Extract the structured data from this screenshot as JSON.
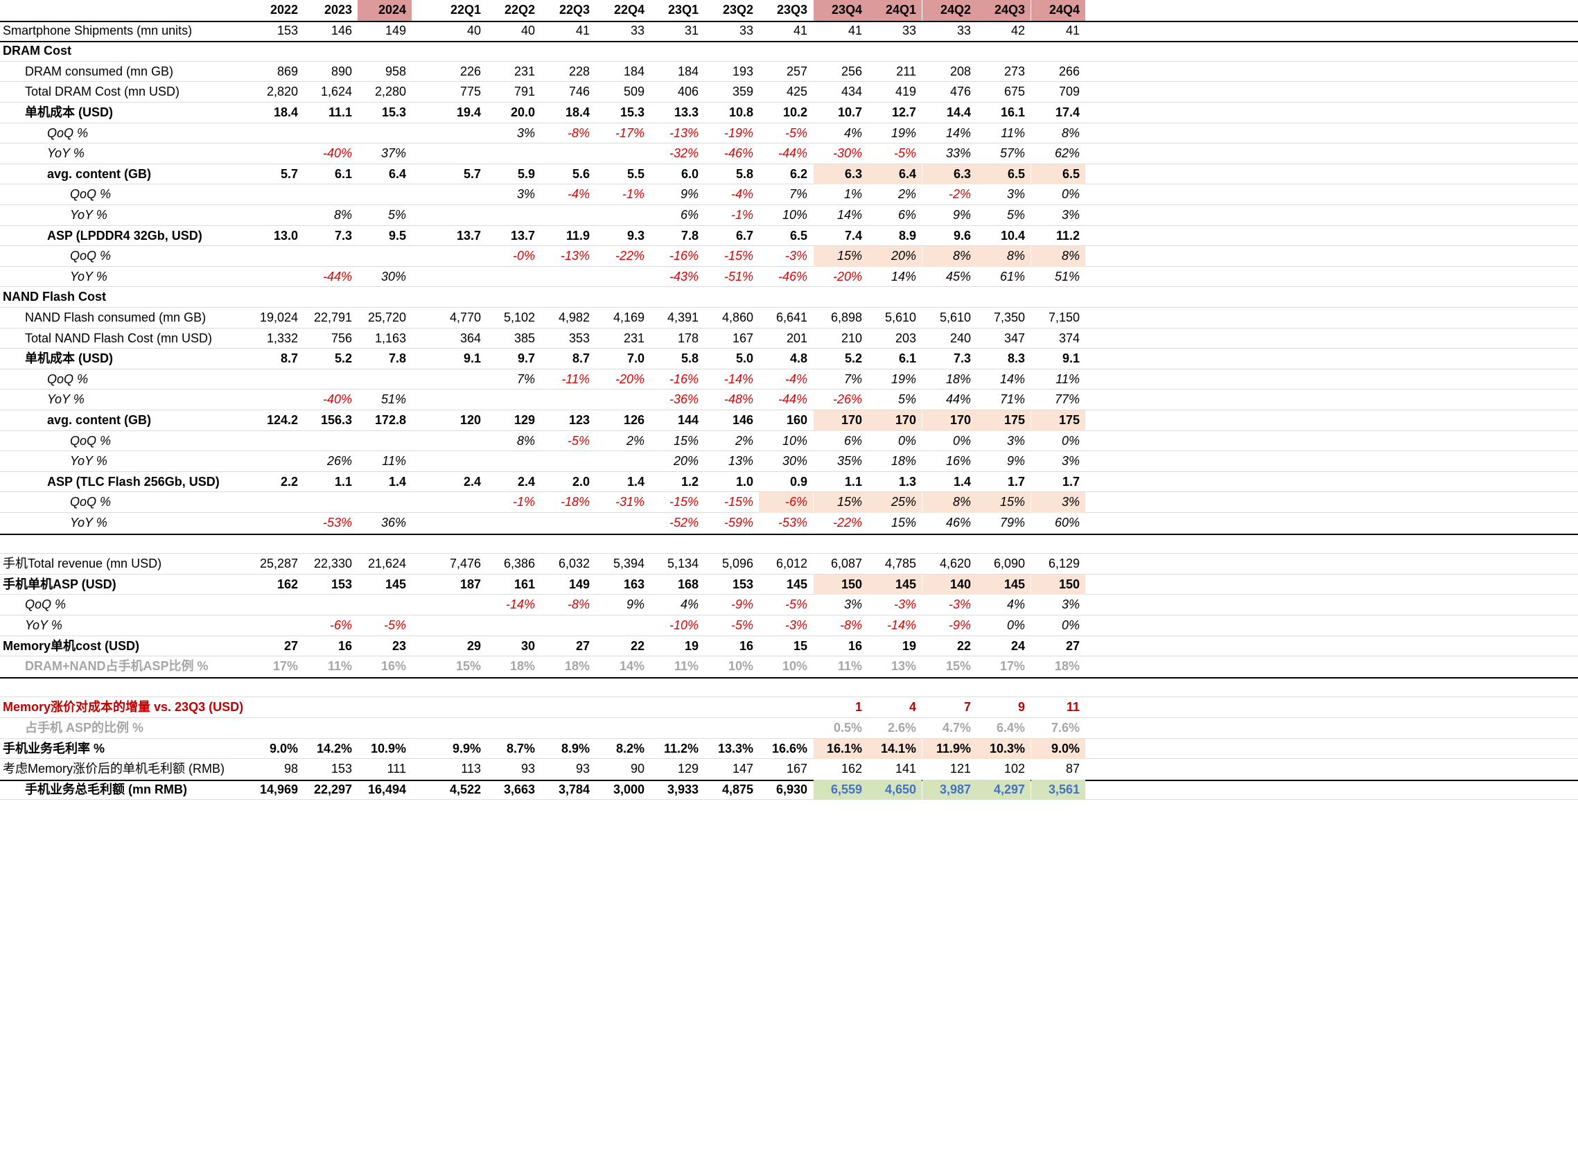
{
  "columns": [
    "2022",
    "2023",
    "2024",
    "22Q1",
    "22Q2",
    "22Q3",
    "22Q4",
    "23Q1",
    "23Q2",
    "23Q3",
    "23Q4",
    "24Q1",
    "24Q2",
    "24Q3",
    "24Q4"
  ],
  "header_highlight": [
    2,
    10,
    11,
    12,
    13,
    14
  ],
  "colors": {
    "rose": "#dc9a9a",
    "peach": "#fbe3d5",
    "green": "#d6e4bc",
    "red": "#e00000",
    "grey": "#a6a6a6",
    "darkred": "#c00000",
    "blue": "#4472c4"
  },
  "rows": [
    {
      "label": "Smartphone Shipments (mn units)",
      "indent": 0,
      "style": "",
      "values": [
        "153",
        "146",
        "149",
        "40",
        "40",
        "41",
        "33",
        "31",
        "33",
        "41",
        "41",
        "33",
        "33",
        "42",
        "41"
      ],
      "rule": true
    },
    {
      "label": "DRAM Cost",
      "indent": 0,
      "style": "b",
      "values": []
    },
    {
      "label": "DRAM consumed (mn GB)",
      "indent": 1,
      "style": "",
      "values": [
        "869",
        "890",
        "958",
        "226",
        "231",
        "228",
        "184",
        "184",
        "193",
        "257",
        "256",
        "211",
        "208",
        "273",
        "266"
      ]
    },
    {
      "label": "Total DRAM Cost (mn USD)",
      "indent": 1,
      "style": "",
      "values": [
        "2,820",
        "1,624",
        "2,280",
        "775",
        "791",
        "746",
        "509",
        "406",
        "359",
        "425",
        "434",
        "419",
        "476",
        "675",
        "709"
      ]
    },
    {
      "label": "单机成本 (USD)",
      "indent": 1,
      "style": "b",
      "values": [
        "18.4",
        "11.1",
        "15.3",
        "19.4",
        "20.0",
        "18.4",
        "15.3",
        "13.3",
        "10.8",
        "10.2",
        "10.7",
        "12.7",
        "14.4",
        "16.1",
        "17.4"
      ]
    },
    {
      "label": "QoQ %",
      "indent": 2,
      "style": "it",
      "values": [
        "",
        "",
        "",
        "",
        "3%",
        "-8%",
        "-17%",
        "-13%",
        "-19%",
        "-5%",
        "4%",
        "19%",
        "14%",
        "11%",
        "8%"
      ]
    },
    {
      "label": "YoY %",
      "indent": 2,
      "style": "it",
      "values": [
        "",
        "-40%",
        "37%",
        "",
        "",
        "",
        "",
        "-32%",
        "-46%",
        "-44%",
        "-30%",
        "-5%",
        "33%",
        "57%",
        "62%"
      ]
    },
    {
      "label": "avg. content (GB)",
      "indent": 2,
      "style": "b",
      "values": [
        "5.7",
        "6.1",
        "6.4",
        "5.7",
        "5.9",
        "5.6",
        "5.5",
        "6.0",
        "5.8",
        "6.2",
        "6.3",
        "6.4",
        "6.3",
        "6.5",
        "6.5"
      ],
      "hl": [
        10,
        11,
        12,
        13,
        14
      ]
    },
    {
      "label": "QoQ %",
      "indent": 3,
      "style": "it",
      "values": [
        "",
        "",
        "",
        "",
        "3%",
        "-4%",
        "-1%",
        "9%",
        "-4%",
        "7%",
        "1%",
        "2%",
        "-2%",
        "3%",
        "0%"
      ]
    },
    {
      "label": "YoY %",
      "indent": 3,
      "style": "it",
      "values": [
        "",
        "8%",
        "5%",
        "",
        "",
        "",
        "",
        "6%",
        "-1%",
        "10%",
        "14%",
        "6%",
        "9%",
        "5%",
        "3%"
      ]
    },
    {
      "label": "ASP (LPDDR4 32Gb, USD)",
      "indent": 2,
      "style": "b",
      "values": [
        "13.0",
        "7.3",
        "9.5",
        "13.7",
        "13.7",
        "11.9",
        "9.3",
        "7.8",
        "6.7",
        "6.5",
        "7.4",
        "8.9",
        "9.6",
        "10.4",
        "11.2"
      ]
    },
    {
      "label": "QoQ %",
      "indent": 3,
      "style": "it",
      "values": [
        "",
        "",
        "",
        "",
        "-0%",
        "-13%",
        "-22%",
        "-16%",
        "-15%",
        "-3%",
        "15%",
        "20%",
        "8%",
        "8%",
        "8%"
      ],
      "hl": [
        10,
        11,
        12,
        13,
        14
      ]
    },
    {
      "label": "YoY %",
      "indent": 3,
      "style": "it",
      "values": [
        "",
        "-44%",
        "30%",
        "",
        "",
        "",
        "",
        "-43%",
        "-51%",
        "-46%",
        "-20%",
        "14%",
        "45%",
        "61%",
        "51%"
      ]
    },
    {
      "label": "NAND Flash Cost",
      "indent": 0,
      "style": "b",
      "values": []
    },
    {
      "label": "NAND Flash consumed (mn GB)",
      "indent": 1,
      "style": "",
      "values": [
        "19,024",
        "22,791",
        "25,720",
        "4,770",
        "5,102",
        "4,982",
        "4,169",
        "4,391",
        "4,860",
        "6,641",
        "6,898",
        "5,610",
        "5,610",
        "7,350",
        "7,150"
      ]
    },
    {
      "label": "Total NAND Flash Cost (mn USD)",
      "indent": 1,
      "style": "",
      "values": [
        "1,332",
        "756",
        "1,163",
        "364",
        "385",
        "353",
        "231",
        "178",
        "167",
        "201",
        "210",
        "203",
        "240",
        "347",
        "374"
      ]
    },
    {
      "label": "单机成本 (USD)",
      "indent": 1,
      "style": "b",
      "values": [
        "8.7",
        "5.2",
        "7.8",
        "9.1",
        "9.7",
        "8.7",
        "7.0",
        "5.8",
        "5.0",
        "4.8",
        "5.2",
        "6.1",
        "7.3",
        "8.3",
        "9.1"
      ]
    },
    {
      "label": "QoQ %",
      "indent": 2,
      "style": "it",
      "values": [
        "",
        "",
        "",
        "",
        "7%",
        "-11%",
        "-20%",
        "-16%",
        "-14%",
        "-4%",
        "7%",
        "19%",
        "18%",
        "14%",
        "11%"
      ]
    },
    {
      "label": "YoY %",
      "indent": 2,
      "style": "it",
      "values": [
        "",
        "-40%",
        "51%",
        "",
        "",
        "",
        "",
        "-36%",
        "-48%",
        "-44%",
        "-26%",
        "5%",
        "44%",
        "71%",
        "77%"
      ]
    },
    {
      "label": "avg. content (GB)",
      "indent": 2,
      "style": "b",
      "values": [
        "124.2",
        "156.3",
        "172.8",
        "120",
        "129",
        "123",
        "126",
        "144",
        "146",
        "160",
        "170",
        "170",
        "170",
        "175",
        "175"
      ],
      "hl": [
        10,
        11,
        12,
        13,
        14
      ]
    },
    {
      "label": "QoQ %",
      "indent": 3,
      "style": "it",
      "values": [
        "",
        "",
        "",
        "",
        "8%",
        "-5%",
        "2%",
        "15%",
        "2%",
        "10%",
        "6%",
        "0%",
        "0%",
        "3%",
        "0%"
      ]
    },
    {
      "label": "YoY %",
      "indent": 3,
      "style": "it",
      "values": [
        "",
        "26%",
        "11%",
        "",
        "",
        "",
        "",
        "20%",
        "13%",
        "30%",
        "35%",
        "18%",
        "16%",
        "9%",
        "3%"
      ]
    },
    {
      "label": "ASP (TLC Flash 256Gb, USD)",
      "indent": 2,
      "style": "b",
      "values": [
        "2.2",
        "1.1",
        "1.4",
        "2.4",
        "2.4",
        "2.0",
        "1.4",
        "1.2",
        "1.0",
        "0.9",
        "1.1",
        "1.3",
        "1.4",
        "1.7",
        "1.7"
      ]
    },
    {
      "label": "QoQ %",
      "indent": 3,
      "style": "it",
      "values": [
        "",
        "",
        "",
        "",
        "-1%",
        "-18%",
        "-31%",
        "-15%",
        "-15%",
        "-6%",
        "15%",
        "25%",
        "8%",
        "15%",
        "3%"
      ],
      "hl": [
        9,
        10,
        11,
        12,
        13,
        14
      ]
    },
    {
      "label": "YoY %",
      "indent": 3,
      "style": "it",
      "values": [
        "",
        "-53%",
        "36%",
        "",
        "",
        "",
        "",
        "-52%",
        "-59%",
        "-53%",
        "-22%",
        "15%",
        "46%",
        "79%",
        "60%"
      ],
      "rule": true
    },
    {
      "label": "",
      "indent": 0,
      "style": "",
      "values": []
    },
    {
      "label": "手机Total revenue (mn USD)",
      "indent": 0,
      "style": "",
      "values": [
        "25,287",
        "22,330",
        "21,624",
        "7,476",
        "6,386",
        "6,032",
        "5,394",
        "5,134",
        "5,096",
        "6,012",
        "6,087",
        "4,785",
        "4,620",
        "6,090",
        "6,129"
      ]
    },
    {
      "label": "手机单机ASP (USD)",
      "indent": 0,
      "style": "b",
      "values": [
        "162",
        "153",
        "145",
        "187",
        "161",
        "149",
        "163",
        "168",
        "153",
        "145",
        "150",
        "145",
        "140",
        "145",
        "150"
      ],
      "hl": [
        10,
        11,
        12,
        13,
        14
      ]
    },
    {
      "label": "QoQ %",
      "indent": 1,
      "style": "it",
      "values": [
        "",
        "",
        "",
        "",
        "-14%",
        "-8%",
        "9%",
        "4%",
        "-9%",
        "-5%",
        "3%",
        "-3%",
        "-3%",
        "4%",
        "3%"
      ]
    },
    {
      "label": "YoY %",
      "indent": 1,
      "style": "it",
      "values": [
        "",
        "-6%",
        "-5%",
        "",
        "",
        "",
        "",
        "-10%",
        "-5%",
        "-3%",
        "-8%",
        "-14%",
        "-9%",
        "0%",
        "0%"
      ]
    },
    {
      "label": "Memory单机cost (USD)",
      "indent": 0,
      "style": "b",
      "values": [
        "27",
        "16",
        "23",
        "29",
        "30",
        "27",
        "22",
        "19",
        "16",
        "15",
        "16",
        "19",
        "22",
        "24",
        "27"
      ]
    },
    {
      "label": "DRAM+NAND占手机ASP比例 %",
      "indent": 1,
      "style": "b grey",
      "values": [
        "17%",
        "11%",
        "16%",
        "15%",
        "18%",
        "18%",
        "14%",
        "11%",
        "10%",
        "10%",
        "11%",
        "13%",
        "15%",
        "17%",
        "18%"
      ],
      "rule": true
    },
    {
      "label": "",
      "indent": 0,
      "style": "",
      "values": []
    },
    {
      "label": "Memory涨价对成本的增量 vs. 23Q3 (USD)",
      "indent": 0,
      "style": "b darkred",
      "values": [
        "",
        "",
        "",
        "",
        "",
        "",
        "",
        "",
        "",
        "",
        "1",
        "4",
        "7",
        "9",
        "11"
      ]
    },
    {
      "label": "占手机 ASP的比例 %",
      "indent": 1,
      "style": "b grey",
      "values": [
        "",
        "",
        "",
        "",
        "",
        "",
        "",
        "",
        "",
        "",
        "0.5%",
        "2.6%",
        "4.7%",
        "6.4%",
        "7.6%"
      ]
    },
    {
      "label": "手机业务毛利率 %",
      "indent": 0,
      "style": "b",
      "values": [
        "9.0%",
        "14.2%",
        "10.9%",
        "9.9%",
        "8.7%",
        "8.9%",
        "8.2%",
        "11.2%",
        "13.3%",
        "16.6%",
        "16.1%",
        "14.1%",
        "11.9%",
        "10.3%",
        "9.0%"
      ],
      "hl": [
        10,
        11,
        12,
        13,
        14
      ]
    },
    {
      "label": "考虑Memory涨价后的单机毛利额 (RMB)",
      "indent": 0,
      "style": "",
      "values": [
        "98",
        "153",
        "111",
        "113",
        "93",
        "93",
        "90",
        "129",
        "147",
        "167",
        "162",
        "141",
        "121",
        "102",
        "87"
      ],
      "rule": true
    },
    {
      "label": "手机业务总毛利额 (mn RMB)",
      "indent": 1,
      "style": "b",
      "values": [
        "14,969",
        "22,297",
        "16,494",
        "4,522",
        "3,663",
        "3,784",
        "3,000",
        "3,933",
        "4,875",
        "6,930",
        "6,559",
        "4,650",
        "3,987",
        "4,297",
        "3,561"
      ],
      "hl": [
        10,
        11,
        12,
        13,
        14
      ],
      "hlcolor": "green",
      "hltext": "blue"
    }
  ]
}
